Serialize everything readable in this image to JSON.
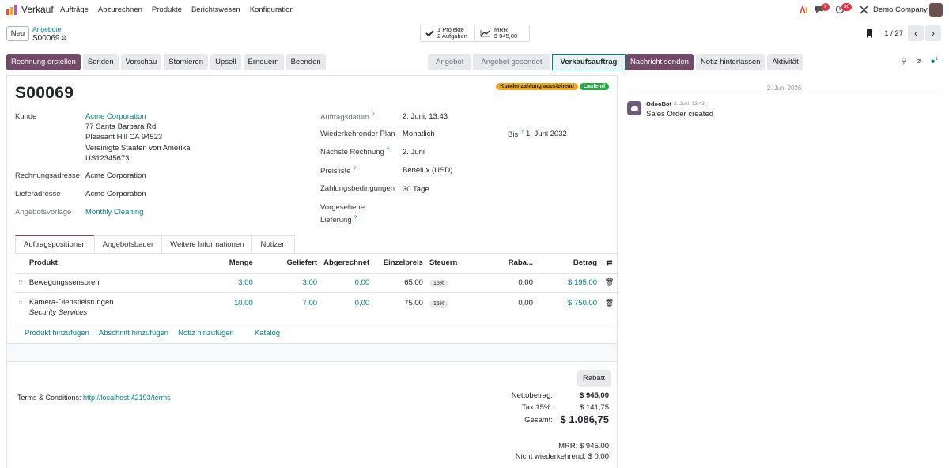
{
  "topbar": {
    "app_name": "Verkauf",
    "menu": [
      "Aufträge",
      "Abzurechnen",
      "Produkte",
      "Berichtswesen",
      "Konfiguration"
    ],
    "messages_badge": "9",
    "activities_badge": "30",
    "company": "Demo Company"
  },
  "control": {
    "new_label": "Neu",
    "breadcrumb": "Angebote",
    "record": "S00069",
    "stat1_line1": "1 Projekte",
    "stat1_line2": "2 Aufgaben",
    "stat2_line1": "MRR",
    "stat2_line2": "$ 945,00",
    "pager": "1 / 27"
  },
  "actions": [
    "Rechnung erstellen",
    "Senden",
    "Vorschau",
    "Stornieren",
    "Upsell",
    "Erneuern",
    "Beenden"
  ],
  "stages": [
    "Angebot",
    "Angebot gesendet",
    "Verkaufsauftrag"
  ],
  "chatter_buttons": [
    "Nachricht senden",
    "Notiz hinterlassen",
    "Aktivität"
  ],
  "followers_count": "1",
  "form": {
    "title": "S00069",
    "ribbon1": "Kundenzahlung ausstehend",
    "ribbon2": "Laufend",
    "customer_label": "Kunde",
    "customer_name": "Acme Corporation",
    "customer_addr": [
      "77 Santa Barbara Rd",
      "Pleasant Hill CA 94523",
      "Vereinigte Staaten von Amerika",
      "US12345673"
    ],
    "invoice_addr_label": "Rechnungsadresse",
    "invoice_addr": "Acme Corporation",
    "delivery_addr_label": "Lieferadresse",
    "delivery_addr": "Acme Corporation",
    "template_label": "Angebotsvorlage",
    "template": "Monthly Cleaning",
    "order_date_label": "Auftragsdatum",
    "order_date": "2. Juni, 13:43",
    "plan_label": "Wiederkehrender Plan",
    "plan": "Monatlich",
    "until_label": "Bis",
    "until": "1. Juni 2032",
    "next_invoice_label": "Nächste Rechnung",
    "next_invoice": "2. Juni",
    "pricelist_label": "Preisliste",
    "pricelist": "Benelux (USD)",
    "terms_label": "Zahlungsbedingungen",
    "terms": "30 Tage",
    "delivery_label1": "Vorgesehene",
    "delivery_label2": "Lieferung",
    "help": "?"
  },
  "tabs": [
    "Auftragspositionen",
    "Angebotsbauer",
    "Weitere Informationen",
    "Notizen"
  ],
  "lines": {
    "headers": [
      "Produkt",
      "Menge",
      "Geliefert",
      "Abgerechnet",
      "Einzelpreis",
      "Steuern",
      "Raba...",
      "Betrag"
    ],
    "rows": [
      {
        "product": "Bewegungssensoren",
        "desc": "",
        "qty": "3,00",
        "delivered": "3,00",
        "invoiced": "0,00",
        "price": "65,00",
        "tax": "15%",
        "discount": "0,00",
        "amount": "$ 195,00"
      },
      {
        "product": "Kamera-Dienstleistungen",
        "desc": "Security Services",
        "qty": "10,00",
        "delivered": "7,00",
        "invoiced": "0,00",
        "price": "75,00",
        "tax": "15%",
        "discount": "0,00",
        "amount": "$ 750,00"
      }
    ],
    "add": [
      "Produkt hinzufügen",
      "Abschnitt hinzufügen",
      "Notiz hinzufügen",
      "Katalog"
    ]
  },
  "footer": {
    "discount_btn": "Rabatt",
    "terms_prefix": "Terms & Conditions:",
    "terms_link": "http://localhost:42193/terms",
    "net_label": "Nettobetrag:",
    "net": "$ 945,00",
    "tax_label": "Tax 15%:",
    "tax": "$ 141,75",
    "total_label": "Gesamt:",
    "total": "$ 1.086,75",
    "mrr": "MRR: $ 945.00",
    "non_recurring": "Nicht wiederkehrend: $ 0.00"
  },
  "chatter": {
    "date": "2. Juni 2026",
    "author": "OdooBot",
    "time": "2. Juni, 13:43",
    "message": "Sales Order created"
  },
  "colors": {
    "primary": "#714b67",
    "link": "#017e84",
    "ribbon_orange": "#f0a91a",
    "ribbon_green": "#28a745"
  }
}
